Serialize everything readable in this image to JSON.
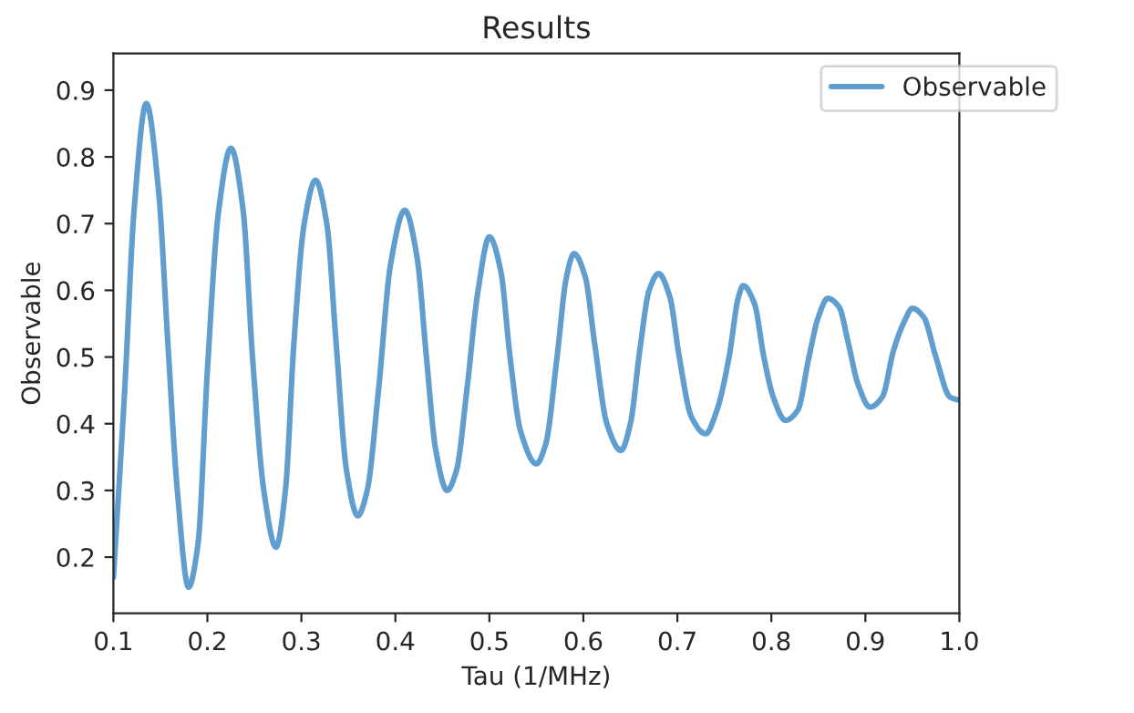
{
  "chart_data": {
    "type": "line",
    "title": "Results",
    "xlabel": "Tau (1/MHz)",
    "ylabel": "Observable",
    "xlim": [
      0.1,
      1.0
    ],
    "xticks": [
      0.1,
      0.2,
      0.3,
      0.4,
      0.5,
      0.6,
      0.7,
      0.8,
      0.9,
      {
        "value": 1.0,
        "label": "1.0"
      }
    ],
    "ylim": [
      0.116,
      0.955
    ],
    "yticks": [
      0.2,
      0.3,
      0.4,
      0.5,
      0.6,
      0.7,
      0.8,
      0.9
    ],
    "grid": false,
    "legend": "top right",
    "marker": "none",
    "line_style": "solid",
    "series": [
      {
        "name": "Observable",
        "color": "#5f9ecf",
        "x": [
          0.1,
          0.112,
          0.122,
          0.135,
          0.148,
          0.158,
          0.168,
          0.18,
          0.19,
          0.2,
          0.212,
          0.225,
          0.238,
          0.248,
          0.26,
          0.273,
          0.283,
          0.292,
          0.303,
          0.315,
          0.327,
          0.337,
          0.348,
          0.36,
          0.37,
          0.382,
          0.395,
          0.41,
          0.423,
          0.433,
          0.443,
          0.455,
          0.465,
          0.476,
          0.488,
          0.5,
          0.512,
          0.522,
          0.533,
          0.55,
          0.56,
          0.572,
          0.582,
          0.59,
          0.602,
          0.612,
          0.625,
          0.64,
          0.65,
          0.66,
          0.67,
          0.68,
          0.692,
          0.702,
          0.715,
          0.73,
          0.742,
          0.755,
          0.765,
          0.77,
          0.782,
          0.792,
          0.802,
          0.815,
          0.828,
          0.84,
          0.85,
          0.86,
          0.872,
          0.882,
          0.892,
          0.905,
          0.918,
          0.93,
          0.942,
          0.95,
          0.962,
          0.975,
          0.99,
          1.0
        ],
        "values": [
          0.17,
          0.45,
          0.72,
          0.88,
          0.75,
          0.52,
          0.3,
          0.155,
          0.22,
          0.48,
          0.72,
          0.813,
          0.72,
          0.5,
          0.3,
          0.215,
          0.3,
          0.52,
          0.7,
          0.765,
          0.7,
          0.52,
          0.33,
          0.262,
          0.3,
          0.45,
          0.64,
          0.72,
          0.65,
          0.5,
          0.36,
          0.3,
          0.33,
          0.45,
          0.6,
          0.68,
          0.63,
          0.5,
          0.39,
          0.34,
          0.37,
          0.5,
          0.62,
          0.655,
          0.62,
          0.52,
          0.4,
          0.36,
          0.4,
          0.51,
          0.6,
          0.625,
          0.59,
          0.5,
          0.41,
          0.385,
          0.42,
          0.5,
          0.59,
          0.607,
          0.58,
          0.5,
          0.44,
          0.405,
          0.42,
          0.5,
          0.56,
          0.588,
          0.575,
          0.52,
          0.46,
          0.425,
          0.44,
          0.51,
          0.555,
          0.573,
          0.56,
          0.5,
          0.44,
          0.435
        ]
      }
    ]
  }
}
